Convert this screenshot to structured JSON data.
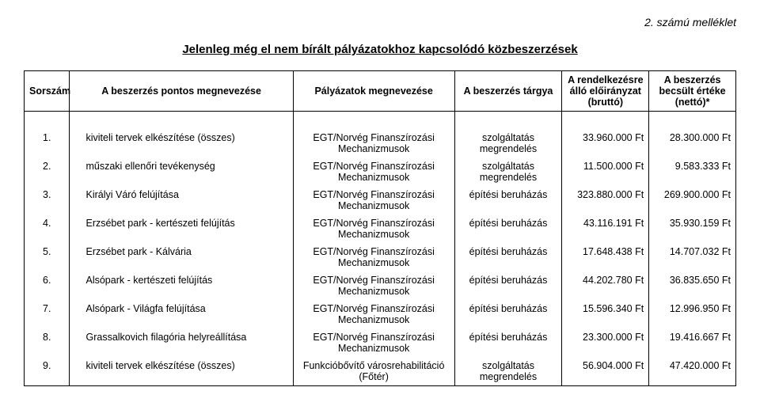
{
  "attachment_label": "2. számú melléklet",
  "title": "Jelenleg még el nem bírált pályázatokhoz kapcsolódó közbeszerzések",
  "columns": {
    "num": "Sorszám",
    "name": "A beszerzés pontos megnevezése",
    "app": "Pályázatok megnevezése",
    "subj": "A beszerzés tárgya",
    "gross": "A rendelkezésre álló előirányzat (bruttó)",
    "net": "A beszerzés becsült értéke (nettó)*"
  },
  "rows": [
    {
      "num": "1.",
      "name": "kiviteli tervek elkészítése (összes)",
      "app": "EGT/Norvég Finanszírozási Mechanizmusok",
      "subj": "szolgáltatás megrendelés",
      "gross": "33.960.000 Ft",
      "net": "28.300.000 Ft"
    },
    {
      "num": "2.",
      "name": "műszaki ellenőri tevékenység",
      "app": "EGT/Norvég Finanszírozási Mechanizmusok",
      "subj": "szolgáltatás megrendelés",
      "gross": "11.500.000 Ft",
      "net": "9.583.333 Ft"
    },
    {
      "num": "3.",
      "name": "Királyi Váró felújítása",
      "app": "EGT/Norvég Finanszírozási Mechanizmusok",
      "subj": "építési beruházás",
      "gross": "323.880.000 Ft",
      "net": "269.900.000 Ft"
    },
    {
      "num": "4.",
      "name": "Erzsébet park - kertészeti felújítás",
      "app": "EGT/Norvég Finanszírozási Mechanizmusok",
      "subj": "építési beruházás",
      "gross": "43.116.191 Ft",
      "net": "35.930.159 Ft"
    },
    {
      "num": "5.",
      "name": "Erzsébet park - Kálvária",
      "app": "EGT/Norvég Finanszírozási Mechanizmusok",
      "subj": "építési beruházás",
      "gross": "17.648.438 Ft",
      "net": "14.707.032 Ft"
    },
    {
      "num": "6.",
      "name": "Alsópark - kertészeti felújítás",
      "app": "EGT/Norvég Finanszírozási Mechanizmusok",
      "subj": "építési beruházás",
      "gross": "44.202.780 Ft",
      "net": "36.835.650 Ft"
    },
    {
      "num": "7.",
      "name": "Alsópark - Világfa felújítása",
      "app": "EGT/Norvég Finanszírozási Mechanizmusok",
      "subj": "építési beruházás",
      "gross": "15.596.340 Ft",
      "net": "12.996.950 Ft"
    },
    {
      "num": "8.",
      "name": "Grassalkovich filagória helyreállítása",
      "app": "EGT/Norvég Finanszírozási Mechanizmusok",
      "subj": "építési beruházás",
      "gross": "23.300.000 Ft",
      "net": "19.416.667 Ft"
    },
    {
      "num": "9.",
      "name": "kiviteli tervek elkészítése (összes)",
      "app": "Funkcióbővítő városrehabilitáció (Főtér)",
      "subj": "szolgáltatás megrendelés",
      "gross": "56.904.000 Ft",
      "net": "47.420.000 Ft"
    }
  ]
}
